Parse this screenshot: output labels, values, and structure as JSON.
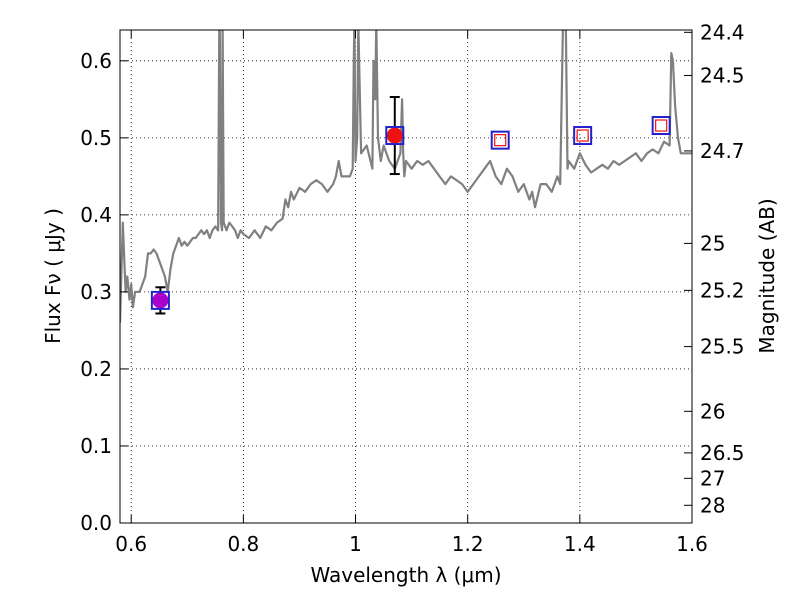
{
  "chart_data": {
    "type": "line",
    "xlabel": "Wavelength  λ (μm)",
    "ylabel": "Flux  Fν  ( μJy )",
    "y2label": "Magnitude (AB)",
    "xlim": [
      0.58,
      1.6
    ],
    "ylim": [
      0.0,
      0.64
    ],
    "grid": true,
    "x_ticks": [
      0.6,
      0.8,
      1.0,
      1.2,
      1.4,
      1.6
    ],
    "x_tick_labels": [
      "0.6",
      "0.8",
      "1",
      "1.2",
      "1.4",
      "1.6"
    ],
    "y_ticks": [
      0.0,
      0.1,
      0.2,
      0.3,
      0.4,
      0.5,
      0.6
    ],
    "y_tick_labels": [
      "0.0",
      "0.1",
      "0.2",
      "0.3",
      "0.4",
      "0.5",
      "0.6"
    ],
    "mag_ticks": [
      {
        "label": "24.4",
        "flux": 0.637
      },
      {
        "label": "24.5",
        "flux": 0.581
      },
      {
        "label": "24.7",
        "flux": 0.483
      },
      {
        "label": "25",
        "flux": 0.363
      },
      {
        "label": "25.2",
        "flux": 0.302
      },
      {
        "label": "25.5",
        "flux": 0.229
      },
      {
        "label": "26",
        "flux": 0.145
      },
      {
        "label": "26.5",
        "flux": 0.091
      },
      {
        "label": "27",
        "flux": 0.058
      },
      {
        "label": "28",
        "flux": 0.023
      }
    ],
    "spectrum": {
      "color": "#808080",
      "x": [
        0.58,
        0.585,
        0.59,
        0.593,
        0.597,
        0.6,
        0.603,
        0.607,
        0.61,
        0.615,
        0.62,
        0.625,
        0.63,
        0.635,
        0.64,
        0.645,
        0.65,
        0.655,
        0.66,
        0.665,
        0.67,
        0.675,
        0.68,
        0.685,
        0.69,
        0.695,
        0.7,
        0.705,
        0.71,
        0.715,
        0.72,
        0.725,
        0.73,
        0.735,
        0.74,
        0.745,
        0.75,
        0.755,
        0.757,
        0.758,
        0.76,
        0.762,
        0.763,
        0.765,
        0.77,
        0.775,
        0.78,
        0.785,
        0.79,
        0.795,
        0.8,
        0.81,
        0.82,
        0.83,
        0.84,
        0.85,
        0.86,
        0.87,
        0.875,
        0.88,
        0.885,
        0.89,
        0.9,
        0.91,
        0.92,
        0.93,
        0.94,
        0.95,
        0.96,
        0.965,
        0.97,
        0.975,
        0.98,
        0.99,
        0.995,
        0.997,
        0.998,
        1.0,
        1.003,
        1.005,
        1.01,
        1.02,
        1.03,
        1.032,
        1.035,
        1.037,
        1.04,
        1.045,
        1.05,
        1.06,
        1.07,
        1.08,
        1.083,
        1.085,
        1.087,
        1.09,
        1.1,
        1.11,
        1.12,
        1.13,
        1.14,
        1.15,
        1.16,
        1.17,
        1.18,
        1.19,
        1.2,
        1.21,
        1.22,
        1.23,
        1.24,
        1.25,
        1.26,
        1.27,
        1.28,
        1.29,
        1.3,
        1.31,
        1.315,
        1.32,
        1.33,
        1.34,
        1.35,
        1.36,
        1.365,
        1.37,
        1.375,
        1.378,
        1.38,
        1.385,
        1.39,
        1.395,
        1.4,
        1.41,
        1.42,
        1.43,
        1.44,
        1.45,
        1.46,
        1.47,
        1.48,
        1.49,
        1.5,
        1.51,
        1.52,
        1.53,
        1.54,
        1.55,
        1.56,
        1.563,
        1.566,
        1.57,
        1.575,
        1.58,
        1.59,
        1.6
      ],
      "y": [
        0.26,
        0.39,
        0.3,
        0.32,
        0.29,
        0.31,
        0.28,
        0.3,
        0.3,
        0.3,
        0.31,
        0.32,
        0.35,
        0.35,
        0.355,
        0.35,
        0.34,
        0.33,
        0.32,
        0.3,
        0.33,
        0.35,
        0.36,
        0.37,
        0.36,
        0.365,
        0.36,
        0.365,
        0.37,
        0.37,
        0.375,
        0.38,
        0.375,
        0.38,
        0.37,
        0.38,
        0.385,
        0.38,
        0.65,
        0.65,
        0.39,
        0.38,
        0.65,
        0.39,
        0.38,
        0.39,
        0.385,
        0.38,
        0.37,
        0.38,
        0.375,
        0.37,
        0.38,
        0.37,
        0.385,
        0.38,
        0.39,
        0.395,
        0.42,
        0.41,
        0.43,
        0.42,
        0.435,
        0.43,
        0.44,
        0.445,
        0.44,
        0.43,
        0.44,
        0.45,
        0.47,
        0.45,
        0.45,
        0.45,
        0.46,
        0.6,
        0.65,
        0.47,
        0.5,
        0.65,
        0.48,
        0.49,
        0.46,
        0.6,
        0.55,
        0.65,
        0.5,
        0.47,
        0.49,
        0.47,
        0.46,
        0.48,
        0.55,
        0.48,
        0.45,
        0.47,
        0.46,
        0.47,
        0.465,
        0.47,
        0.46,
        0.45,
        0.44,
        0.45,
        0.445,
        0.44,
        0.43,
        0.44,
        0.45,
        0.46,
        0.47,
        0.45,
        0.44,
        0.46,
        0.45,
        0.43,
        0.44,
        0.42,
        0.43,
        0.41,
        0.44,
        0.44,
        0.43,
        0.45,
        0.44,
        0.65,
        0.65,
        0.46,
        0.47,
        0.465,
        0.46,
        0.47,
        0.48,
        0.465,
        0.455,
        0.46,
        0.465,
        0.46,
        0.47,
        0.465,
        0.47,
        0.475,
        0.48,
        0.47,
        0.48,
        0.485,
        0.48,
        0.495,
        0.49,
        0.61,
        0.6,
        0.54,
        0.5,
        0.48,
        0.48,
        0.48
      ]
    },
    "markers": [
      {
        "x": 0.652,
        "y": 0.289,
        "kind": "circle",
        "color": "#aa00cc",
        "err": 0.017
      },
      {
        "x": 0.652,
        "y": 0.289,
        "kind": "square",
        "color": "#2222cc"
      },
      {
        "x": 1.07,
        "y": 0.503,
        "kind": "circle",
        "color": "#ee1111",
        "err": 0.05
      },
      {
        "x": 1.07,
        "y": 0.503,
        "kind": "square",
        "color": "#2222cc"
      },
      {
        "x": 1.258,
        "y": 0.497,
        "kind": "square",
        "color": "#2222cc"
      },
      {
        "x": 1.258,
        "y": 0.497,
        "kind": "small-square",
        "color": "#ee1111"
      },
      {
        "x": 1.405,
        "y": 0.503,
        "kind": "square",
        "color": "#2222cc"
      },
      {
        "x": 1.405,
        "y": 0.503,
        "kind": "small-square",
        "color": "#ee1111"
      },
      {
        "x": 1.545,
        "y": 0.516,
        "kind": "square",
        "color": "#2222cc"
      },
      {
        "x": 1.545,
        "y": 0.516,
        "kind": "small-square",
        "color": "#ee1111"
      }
    ]
  }
}
